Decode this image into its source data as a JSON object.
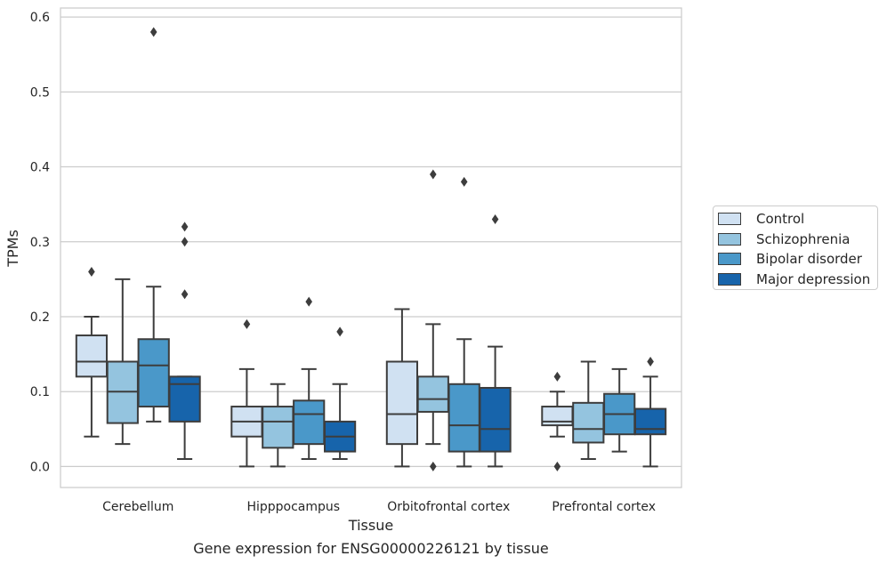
{
  "chart_data": {
    "type": "box",
    "title": "",
    "caption": "Gene expression for ENSG00000226121 by tissue",
    "xlabel": "Tissue",
    "ylabel": "TPMs",
    "ylim": [
      -0.028,
      0.612
    ],
    "yticks": [
      0.0,
      0.1,
      0.2,
      0.3,
      0.4,
      0.5,
      0.6
    ],
    "ytick_labels": [
      "0.0",
      "0.1",
      "0.2",
      "0.3",
      "0.4",
      "0.5",
      "0.6"
    ],
    "grid": "horizontal",
    "legend_position": "right",
    "categories": [
      "Cerebellum",
      "Hipppocampus",
      "Orbitofrontal cortex",
      "Prefrontal cortex"
    ],
    "series": [
      {
        "name": "Control",
        "color": "#d0e1f2",
        "boxes": [
          {
            "whislo": 0.04,
            "q1": 0.12,
            "med": 0.14,
            "q3": 0.175,
            "whishi": 0.2,
            "fliers": [
              0.26
            ]
          },
          {
            "whislo": 0.0,
            "q1": 0.04,
            "med": 0.06,
            "q3": 0.08,
            "whishi": 0.13,
            "fliers": [
              0.19
            ]
          },
          {
            "whislo": 0.0,
            "q1": 0.03,
            "med": 0.07,
            "q3": 0.14,
            "whishi": 0.21,
            "fliers": []
          },
          {
            "whislo": 0.04,
            "q1": 0.055,
            "med": 0.06,
            "q3": 0.08,
            "whishi": 0.1,
            "fliers": [
              0.0,
              0.12
            ]
          }
        ]
      },
      {
        "name": "Schizophrenia",
        "color": "#94c4df",
        "boxes": [
          {
            "whislo": 0.03,
            "q1": 0.058,
            "med": 0.1,
            "q3": 0.14,
            "whishi": 0.25,
            "fliers": []
          },
          {
            "whislo": 0.0,
            "q1": 0.025,
            "med": 0.06,
            "q3": 0.08,
            "whishi": 0.11,
            "fliers": []
          },
          {
            "whislo": 0.03,
            "q1": 0.073,
            "med": 0.09,
            "q3": 0.12,
            "whishi": 0.19,
            "fliers": [
              0.0,
              0.39
            ]
          },
          {
            "whislo": 0.01,
            "q1": 0.032,
            "med": 0.05,
            "q3": 0.085,
            "whishi": 0.14,
            "fliers": []
          }
        ]
      },
      {
        "name": "Bipolar disorder",
        "color": "#4a98c9",
        "boxes": [
          {
            "whislo": 0.06,
            "q1": 0.08,
            "med": 0.135,
            "q3": 0.17,
            "whishi": 0.24,
            "fliers": [
              0.58
            ]
          },
          {
            "whislo": 0.01,
            "q1": 0.03,
            "med": 0.07,
            "q3": 0.088,
            "whishi": 0.13,
            "fliers": [
              0.22
            ]
          },
          {
            "whislo": 0.0,
            "q1": 0.02,
            "med": 0.055,
            "q3": 0.11,
            "whishi": 0.17,
            "fliers": [
              0.38
            ]
          },
          {
            "whislo": 0.02,
            "q1": 0.043,
            "med": 0.07,
            "q3": 0.097,
            "whishi": 0.13,
            "fliers": []
          }
        ]
      },
      {
        "name": "Major depression",
        "color": "#1764ab",
        "boxes": [
          {
            "whislo": 0.01,
            "q1": 0.06,
            "med": 0.11,
            "q3": 0.12,
            "whishi": 0.12,
            "fliers": [
              0.23,
              0.3,
              0.32
            ]
          },
          {
            "whislo": 0.01,
            "q1": 0.02,
            "med": 0.04,
            "q3": 0.06,
            "whishi": 0.11,
            "fliers": [
              0.18
            ]
          },
          {
            "whislo": 0.0,
            "q1": 0.02,
            "med": 0.05,
            "q3": 0.105,
            "whishi": 0.16,
            "fliers": [
              0.33
            ]
          },
          {
            "whislo": 0.0,
            "q1": 0.043,
            "med": 0.05,
            "q3": 0.077,
            "whishi": 0.12,
            "fliers": [
              0.14
            ]
          }
        ]
      }
    ]
  }
}
